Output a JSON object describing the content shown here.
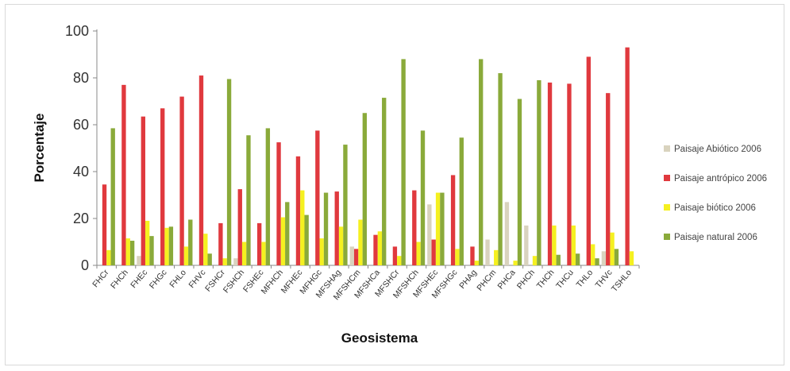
{
  "chart_data": {
    "type": "bar",
    "title": "",
    "xlabel": "Geosistema",
    "ylabel": "Porcentaje",
    "ylim": [
      0,
      100
    ],
    "yticks": [
      0,
      20,
      40,
      60,
      80,
      100
    ],
    "grid": false,
    "legend_position": "right",
    "categories": [
      "FHCr",
      "FHCh",
      "FHEc",
      "FHGc",
      "FHLo",
      "FHVc",
      "FSHCr",
      "FSHCh",
      "FSHEc",
      "MFHCh",
      "MFHEc",
      "MFHGc",
      "MFSHAg",
      "MFSHCm",
      "MFSHCa",
      "MFSHCr",
      "MFSHCh",
      "MFSHEc",
      "MFSHGc",
      "PHAg",
      "PHCm",
      "PHCa",
      "PHCh",
      "THCh",
      "THCu",
      "THLo",
      "THVc",
      "TSHLo"
    ],
    "series": [
      {
        "name": "Paisaje Abiótico 2006",
        "color": "#d9d3be",
        "values": [
          0,
          0,
          4,
          0,
          0,
          0,
          0,
          3,
          0,
          0,
          0,
          0,
          0,
          8,
          0,
          0,
          0,
          26,
          0,
          0,
          11,
          27,
          17,
          0,
          0,
          0,
          6,
          0
        ]
      },
      {
        "name": "Paisaje antrópico 2006",
        "color": "#e0393e",
        "values": [
          34.5,
          77,
          63.5,
          67,
          72,
          81,
          18,
          32.5,
          18,
          52.5,
          46.5,
          57.5,
          31.5,
          7,
          13,
          8,
          32,
          11,
          38.5,
          8,
          0,
          0,
          0,
          78,
          77.5,
          89,
          73.5,
          93
        ]
      },
      {
        "name": "Paisaje biótico 2006",
        "color": "#f5f020",
        "values": [
          6.5,
          11.5,
          19,
          16,
          8,
          13.5,
          3,
          10,
          10,
          20.5,
          32,
          11.5,
          16.5,
          19.5,
          14.5,
          4,
          10,
          31,
          7,
          2,
          6.5,
          2,
          4,
          17,
          17,
          9,
          14,
          6
        ]
      },
      {
        "name": "Paisaje natural 2006",
        "color": "#8aaa3a",
        "values": [
          58.5,
          10.5,
          12.5,
          16.5,
          19.5,
          5,
          79.5,
          55.5,
          58.5,
          27,
          21.5,
          31,
          51.5,
          65,
          71.5,
          88,
          57.5,
          31,
          54.5,
          88,
          82,
          71,
          79,
          4.5,
          5,
          3,
          7,
          0
        ]
      }
    ]
  }
}
